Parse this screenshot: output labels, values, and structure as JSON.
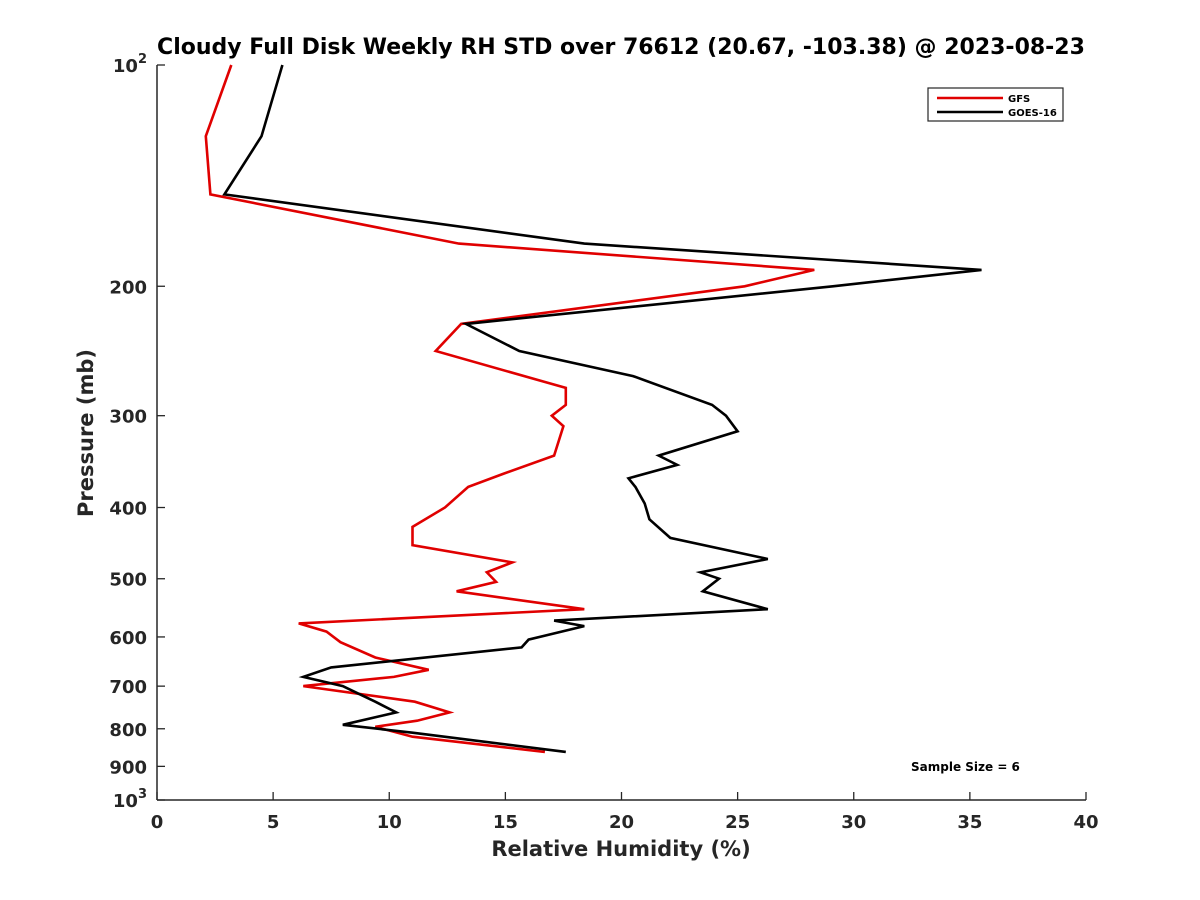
{
  "colors": {
    "gfs": "#e00000",
    "goes": "#000000",
    "axis": "#262626"
  },
  "chart_data": {
    "type": "line",
    "title": "Cloudy Full Disk Weekly RH STD over 76612 (20.67, -103.38) @ 2023-08-23",
    "xlabel": "Relative Humidity (%)",
    "ylabel": "Pressure (mb)",
    "xlim": [
      0,
      40
    ],
    "ylim": [
      100,
      1000
    ],
    "yscale": "log",
    "yreverse": true,
    "grid": false,
    "x_ticks": [
      {
        "value": 0,
        "label": "0"
      },
      {
        "value": 5,
        "label": "5"
      },
      {
        "value": 10,
        "label": "10"
      },
      {
        "value": 15,
        "label": "15"
      },
      {
        "value": 20,
        "label": "20"
      },
      {
        "value": 25,
        "label": "25"
      },
      {
        "value": 30,
        "label": "30"
      },
      {
        "value": 35,
        "label": "35"
      },
      {
        "value": 40,
        "label": "40"
      }
    ],
    "y_ticks": [
      {
        "value": 100,
        "label": "10",
        "sup": "2"
      },
      {
        "value": 200,
        "label": "200"
      },
      {
        "value": 300,
        "label": "300"
      },
      {
        "value": 400,
        "label": "400"
      },
      {
        "value": 500,
        "label": "500"
      },
      {
        "value": 600,
        "label": "600"
      },
      {
        "value": 700,
        "label": "700"
      },
      {
        "value": 800,
        "label": "800"
      },
      {
        "value": 900,
        "label": "900"
      },
      {
        "value": 1000,
        "label": "10",
        "sup": "3"
      }
    ],
    "legend_position": "top-right",
    "annotation": "Sample Size = 6",
    "series": [
      {
        "name": "GFS",
        "color": "#e00000",
        "points": [
          [
            3.2,
            100
          ],
          [
            2.1,
            125
          ],
          [
            2.3,
            150
          ],
          [
            13.0,
            175
          ],
          [
            28.3,
            190
          ],
          [
            25.3,
            200
          ],
          [
            13.1,
            225
          ],
          [
            12.0,
            245
          ],
          [
            17.6,
            275
          ],
          [
            17.6,
            290
          ],
          [
            17.0,
            300
          ],
          [
            17.5,
            310
          ],
          [
            17.1,
            340
          ],
          [
            14.9,
            360
          ],
          [
            13.4,
            375
          ],
          [
            12.4,
            400
          ],
          [
            11.0,
            425
          ],
          [
            11.0,
            450
          ],
          [
            15.3,
            475
          ],
          [
            14.2,
            490
          ],
          [
            14.6,
            505
          ],
          [
            12.9,
            520
          ],
          [
            18.4,
            550
          ],
          [
            6.1,
            575
          ],
          [
            7.3,
            590
          ],
          [
            7.9,
            610
          ],
          [
            9.4,
            640
          ],
          [
            11.7,
            665
          ],
          [
            10.2,
            680
          ],
          [
            6.3,
            700
          ],
          [
            11.1,
            735
          ],
          [
            12.6,
            760
          ],
          [
            11.2,
            780
          ],
          [
            9.4,
            795
          ],
          [
            11.0,
            820
          ],
          [
            16.7,
            860
          ]
        ]
      },
      {
        "name": "GOES-16",
        "color": "#000000",
        "points": [
          [
            5.4,
            100
          ],
          [
            4.5,
            125
          ],
          [
            2.9,
            150
          ],
          [
            18.4,
            175
          ],
          [
            35.5,
            190
          ],
          [
            29.1,
            200
          ],
          [
            13.3,
            225
          ],
          [
            15.6,
            245
          ],
          [
            20.5,
            265
          ],
          [
            23.9,
            290
          ],
          [
            24.5,
            300
          ],
          [
            25.0,
            315
          ],
          [
            21.6,
            340
          ],
          [
            22.4,
            350
          ],
          [
            20.3,
            365
          ],
          [
            20.6,
            375
          ],
          [
            21.0,
            395
          ],
          [
            21.2,
            415
          ],
          [
            22.1,
            440
          ],
          [
            26.3,
            470
          ],
          [
            23.4,
            490
          ],
          [
            24.2,
            500
          ],
          [
            23.5,
            520
          ],
          [
            26.3,
            550
          ],
          [
            17.1,
            570
          ],
          [
            18.4,
            580
          ],
          [
            16.0,
            605
          ],
          [
            15.7,
            620
          ],
          [
            7.5,
            660
          ],
          [
            6.3,
            680
          ],
          [
            8.0,
            700
          ],
          [
            8.8,
            720
          ],
          [
            9.4,
            735
          ],
          [
            10.3,
            760
          ],
          [
            8.0,
            790
          ],
          [
            11.0,
            810
          ],
          [
            17.6,
            860
          ]
        ]
      }
    ]
  }
}
